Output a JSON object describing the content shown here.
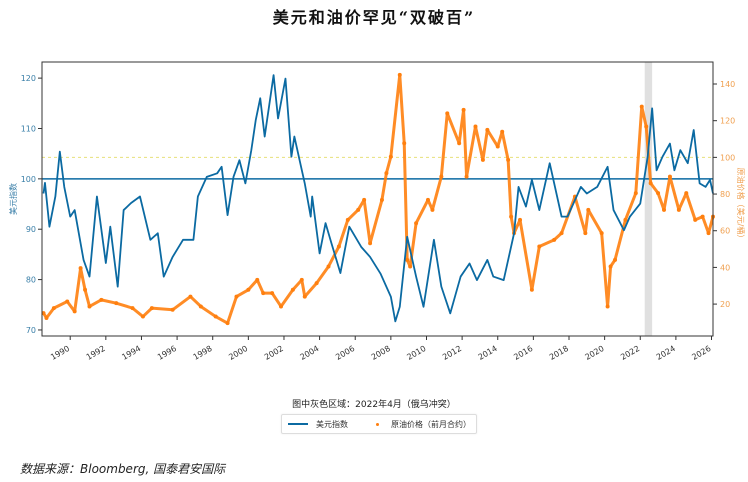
{
  "title": "美元和油价罕见“双破百”",
  "note": "图中灰色区域：2022年4月（俄乌冲突）",
  "source": "数据来源：Bloomberg, 国泰君安国际",
  "chart_data": {
    "type": "line",
    "title": "美元和油价罕见“双破百”",
    "x_range": [
      "1988-06",
      "2026-02"
    ],
    "x_ticks": [
      "1990",
      "1992",
      "1994",
      "1996",
      "1998",
      "2000",
      "2002",
      "2004",
      "2006",
      "2008",
      "2010",
      "2012",
      "2014",
      "2016",
      "2018",
      "2020",
      "2022",
      "2024",
      "2026"
    ],
    "left_axis": {
      "label": "美元指数",
      "ylim": [
        68.8,
        123.2
      ],
      "ticks": [
        70,
        80,
        90,
        100,
        110,
        120
      ],
      "color": "#3a7fa8"
    },
    "right_axis": {
      "label": "原油价格（美元/桶）",
      "ylim": [
        2.6,
        152
      ],
      "ticks": [
        20,
        40,
        60,
        80,
        100,
        120,
        140
      ],
      "color": "#f0a050"
    },
    "reference_lines": [
      {
        "axis": "left",
        "value": 100,
        "color": "#0b6aa2",
        "style": "solid"
      },
      {
        "axis": "right",
        "value": 100,
        "color": "#e8e07a",
        "style": "dotted"
      }
    ],
    "shaded_region": {
      "from": "2022-04",
      "to": "2022-09",
      "color": "#d8d8d8"
    },
    "grid": false,
    "legend_position": "bottom-center",
    "series": [
      {
        "name": "美元指数",
        "axis": "left",
        "kind": "line",
        "color": "#0b6aa2",
        "points": [
          [
            "1988-07",
            97.1
          ],
          [
            "1988-08",
            99.2
          ],
          [
            "1988-11",
            90.5
          ],
          [
            "1989-03",
            96.5
          ],
          [
            "1989-06",
            105.4
          ],
          [
            "1989-09",
            98.4
          ],
          [
            "1990-01",
            92.5
          ],
          [
            "1990-04",
            93.8
          ],
          [
            "1990-10",
            83.9
          ],
          [
            "1991-02",
            80.6
          ],
          [
            "1991-07",
            96.5
          ],
          [
            "1992-01",
            83.3
          ],
          [
            "1992-04",
            90.5
          ],
          [
            "1992-09",
            78.6
          ],
          [
            "1993-01",
            93.8
          ],
          [
            "1993-06",
            95.2
          ],
          [
            "1993-12",
            96.5
          ],
          [
            "1994-07",
            87.9
          ],
          [
            "1994-12",
            89.2
          ],
          [
            "1995-04",
            80.6
          ],
          [
            "1995-10",
            84.5
          ],
          [
            "1996-05",
            87.9
          ],
          [
            "1996-12",
            87.9
          ],
          [
            "1997-03",
            96.5
          ],
          [
            "1997-09",
            100.4
          ],
          [
            "1998-04",
            101.1
          ],
          [
            "1998-07",
            102.4
          ],
          [
            "1998-11",
            92.8
          ],
          [
            "1999-03",
            100.4
          ],
          [
            "1999-07",
            103.7
          ],
          [
            "1999-11",
            99.1
          ],
          [
            "2000-03",
            105.7
          ],
          [
            "2000-06",
            111.7
          ],
          [
            "2000-09",
            116.0
          ],
          [
            "2000-12",
            108.4
          ],
          [
            "2001-06",
            120.6
          ],
          [
            "2001-09",
            112.0
          ],
          [
            "2002-02",
            119.9
          ],
          [
            "2002-06",
            104.4
          ],
          [
            "2002-08",
            108.4
          ],
          [
            "2003-03",
            99.1
          ],
          [
            "2003-07",
            92.5
          ],
          [
            "2003-08",
            96.5
          ],
          [
            "2004-01",
            85.2
          ],
          [
            "2004-05",
            91.2
          ],
          [
            "2004-09",
            87.2
          ],
          [
            "2005-03",
            81.3
          ],
          [
            "2005-09",
            90.5
          ],
          [
            "2006-05",
            86.5
          ],
          [
            "2006-11",
            84.5
          ],
          [
            "2007-06",
            81.2
          ],
          [
            "2008-01",
            76.6
          ],
          [
            "2008-04",
            71.7
          ],
          [
            "2008-07",
            74.6
          ],
          [
            "2008-12",
            88.5
          ],
          [
            "2009-06",
            80.6
          ],
          [
            "2009-11",
            74.6
          ],
          [
            "2010-06",
            87.9
          ],
          [
            "2010-11",
            78.6
          ],
          [
            "2011-05",
            73.3
          ],
          [
            "2011-12",
            80.6
          ],
          [
            "2012-06",
            83.2
          ],
          [
            "2012-11",
            79.9
          ],
          [
            "2013-06",
            83.9
          ],
          [
            "2013-10",
            80.6
          ],
          [
            "2014-05",
            79.9
          ],
          [
            "2014-12",
            89.2
          ],
          [
            "2015-03",
            98.4
          ],
          [
            "2015-08",
            94.5
          ],
          [
            "2015-12",
            99.8
          ],
          [
            "2016-05",
            93.8
          ],
          [
            "2016-12",
            103.1
          ],
          [
            "2017-08",
            92.5
          ],
          [
            "2017-12",
            92.5
          ],
          [
            "2018-09",
            98.4
          ],
          [
            "2019-01",
            97.1
          ],
          [
            "2019-08",
            98.4
          ],
          [
            "2020-03",
            102.4
          ],
          [
            "2020-07",
            93.8
          ],
          [
            "2021-02",
            89.8
          ],
          [
            "2021-06",
            92.5
          ],
          [
            "2022-01",
            95.1
          ],
          [
            "2022-06",
            104.4
          ],
          [
            "2022-09",
            114.0
          ],
          [
            "2022-12",
            101.7
          ],
          [
            "2023-04",
            104.4
          ],
          [
            "2023-09",
            107.0
          ],
          [
            "2023-12",
            101.7
          ],
          [
            "2024-04",
            105.7
          ],
          [
            "2024-09",
            103.1
          ],
          [
            "2025-01",
            109.7
          ],
          [
            "2025-05",
            99.1
          ],
          [
            "2025-09",
            98.4
          ],
          [
            "2025-12",
            99.8
          ],
          [
            "2026-02",
            97.1
          ]
        ]
      },
      {
        "name": "原油价格（前月合约）",
        "axis": "right",
        "kind": "scatter",
        "color": "#ff7f0e",
        "points": [
          [
            "1988-07",
            15.1
          ],
          [
            "1988-09",
            12.4
          ],
          [
            "1989-02",
            17.8
          ],
          [
            "1989-11",
            21.4
          ],
          [
            "1990-04",
            16.0
          ],
          [
            "1990-08",
            39.6
          ],
          [
            "1990-11",
            27.8
          ],
          [
            "1991-02",
            18.7
          ],
          [
            "1991-10",
            22.3
          ],
          [
            "1992-08",
            20.5
          ],
          [
            "1993-07",
            17.8
          ],
          [
            "1994-02",
            13.2
          ],
          [
            "1994-08",
            17.8
          ],
          [
            "1995-10",
            16.9
          ],
          [
            "1996-10",
            24.1
          ],
          [
            "1997-05",
            18.7
          ],
          [
            "1998-03",
            13.2
          ],
          [
            "1998-11",
            9.6
          ],
          [
            "1999-05",
            24.1
          ],
          [
            "2000-01",
            27.8
          ],
          [
            "2000-07",
            33.2
          ],
          [
            "2000-11",
            26.0
          ],
          [
            "2001-05",
            26.0
          ],
          [
            "2001-11",
            18.7
          ],
          [
            "2002-07",
            27.8
          ],
          [
            "2003-01",
            33.2
          ],
          [
            "2003-03",
            24.1
          ],
          [
            "2003-11",
            31.4
          ],
          [
            "2004-07",
            40.5
          ],
          [
            "2005-02",
            51.4
          ],
          [
            "2005-08",
            65.9
          ],
          [
            "2006-03",
            71.4
          ],
          [
            "2006-07",
            76.8
          ],
          [
            "2006-11",
            53.2
          ],
          [
            "2007-07",
            76.8
          ],
          [
            "2007-10",
            91.4
          ],
          [
            "2008-01",
            100.4
          ],
          [
            "2008-07",
            145.0
          ],
          [
            "2008-10",
            107.7
          ],
          [
            "2008-12",
            44.1
          ],
          [
            "2009-02",
            40.5
          ],
          [
            "2009-06",
            64.1
          ],
          [
            "2010-02",
            76.8
          ],
          [
            "2010-05",
            71.4
          ],
          [
            "2010-11",
            89.5
          ],
          [
            "2011-03",
            124.0
          ],
          [
            "2011-11",
            107.7
          ],
          [
            "2012-02",
            125.9
          ],
          [
            "2012-04",
            89.5
          ],
          [
            "2012-10",
            116.8
          ],
          [
            "2013-03",
            98.6
          ],
          [
            "2013-06",
            115.0
          ],
          [
            "2014-01",
            105.9
          ],
          [
            "2014-04",
            114.0
          ],
          [
            "2014-08",
            98.6
          ],
          [
            "2014-10",
            67.7
          ],
          [
            "2014-12",
            58.7
          ],
          [
            "2015-04",
            65.9
          ],
          [
            "2015-12",
            27.8
          ],
          [
            "2016-05",
            51.4
          ],
          [
            "2017-03",
            55.0
          ],
          [
            "2017-08",
            58.7
          ],
          [
            "2018-05",
            78.6
          ],
          [
            "2018-12",
            58.7
          ],
          [
            "2019-02",
            71.4
          ],
          [
            "2019-11",
            58.7
          ],
          [
            "2020-03",
            18.7
          ],
          [
            "2020-05",
            40.5
          ],
          [
            "2020-08",
            44.1
          ],
          [
            "2021-03",
            65.9
          ],
          [
            "2021-10",
            80.5
          ],
          [
            "2022-02",
            127.7
          ],
          [
            "2022-05",
            116.8
          ],
          [
            "2022-08",
            85.9
          ],
          [
            "2023-01",
            80.5
          ],
          [
            "2023-05",
            71.4
          ],
          [
            "2023-09",
            89.5
          ],
          [
            "2024-03",
            71.4
          ],
          [
            "2024-08",
            80.5
          ],
          [
            "2025-02",
            65.9
          ],
          [
            "2025-07",
            67.7
          ],
          [
            "2025-11",
            58.7
          ],
          [
            "2026-02",
            67.7
          ]
        ]
      }
    ]
  }
}
